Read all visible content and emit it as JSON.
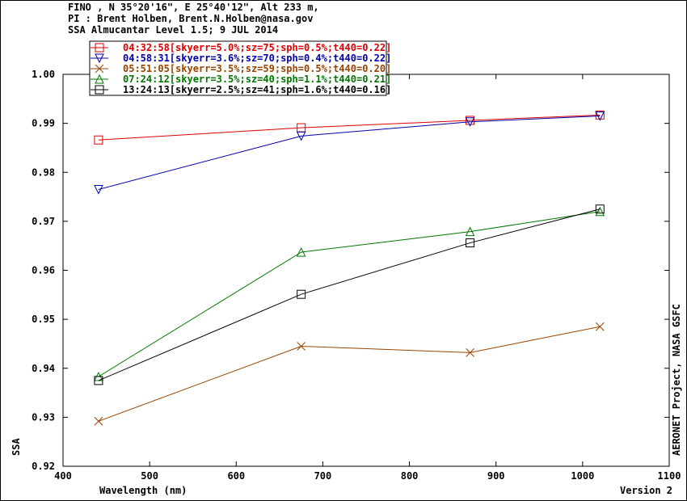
{
  "header": {
    "line1": "FINO , N 35°20'16\", E 25°40'12\", Alt 233 m,",
    "line2": "PI : Brent Holben, Brent.N.Holben@nasa.gov",
    "line3": "SSA Almucantar Level 1.5; 9 JUL 2014"
  },
  "footer": {
    "version": "Version 2",
    "credit": "AERONET Project, NASA GSFC"
  },
  "chart_data": {
    "type": "line",
    "xlabel": "Wavelength (nm)",
    "ylabel": "SSA",
    "xlim": [
      400,
      1100
    ],
    "ylim": [
      0.92,
      1.0
    ],
    "xticks": [
      400,
      500,
      600,
      700,
      800,
      900,
      1000,
      1100
    ],
    "yticks": [
      0.92,
      0.93,
      0.94,
      0.95,
      0.96,
      0.97,
      0.98,
      0.99,
      1.0
    ],
    "ytick_labels": [
      "0.92",
      "0.93",
      "0.94",
      "0.95",
      "0.96",
      "0.97",
      "0.98",
      "0.99",
      "1.00"
    ],
    "legend_position": "top-left",
    "grid": false,
    "series": [
      {
        "name": "04:32:58[skyerr=5.0%;sz=75;sph=0.5%;t440=0.22]",
        "color": "#dd0000",
        "marker": "square",
        "x": [
          441,
          675,
          870,
          1020
        ],
        "y": [
          0.9866,
          0.9891,
          0.9906,
          0.9917
        ]
      },
      {
        "name": "04:58:31[skyerr=3.6%;sz=70;sph=0.4%;t440=0.22]",
        "color": "#0000aa",
        "marker": "triangle-down",
        "x": [
          441,
          675,
          870,
          1020
        ],
        "y": [
          0.9765,
          0.9874,
          0.9903,
          0.9915
        ]
      },
      {
        "name": "05:51:05[skyerr=3.5%;sz=59;sph=0.5%;t440=0.20]",
        "color": "#994400",
        "marker": "x",
        "x": [
          441,
          675,
          870,
          1020
        ],
        "y": [
          0.9292,
          0.9445,
          0.9432,
          0.9485
        ]
      },
      {
        "name": "07:24:12[skyerr=3.5%;sz=40;sph=1.1%;t440=0.21]",
        "color": "#007700",
        "marker": "triangle-up",
        "x": [
          441,
          675,
          870,
          1020
        ],
        "y": [
          0.9383,
          0.9637,
          0.9679,
          0.972
        ]
      },
      {
        "name": "13:24:13[skyerr=2.5%;sz=41;sph=1.6%;t440=0.16]",
        "color": "#000000",
        "marker": "square",
        "x": [
          441,
          675,
          870,
          1020
        ],
        "y": [
          0.9375,
          0.9551,
          0.9656,
          0.9725
        ]
      }
    ]
  }
}
